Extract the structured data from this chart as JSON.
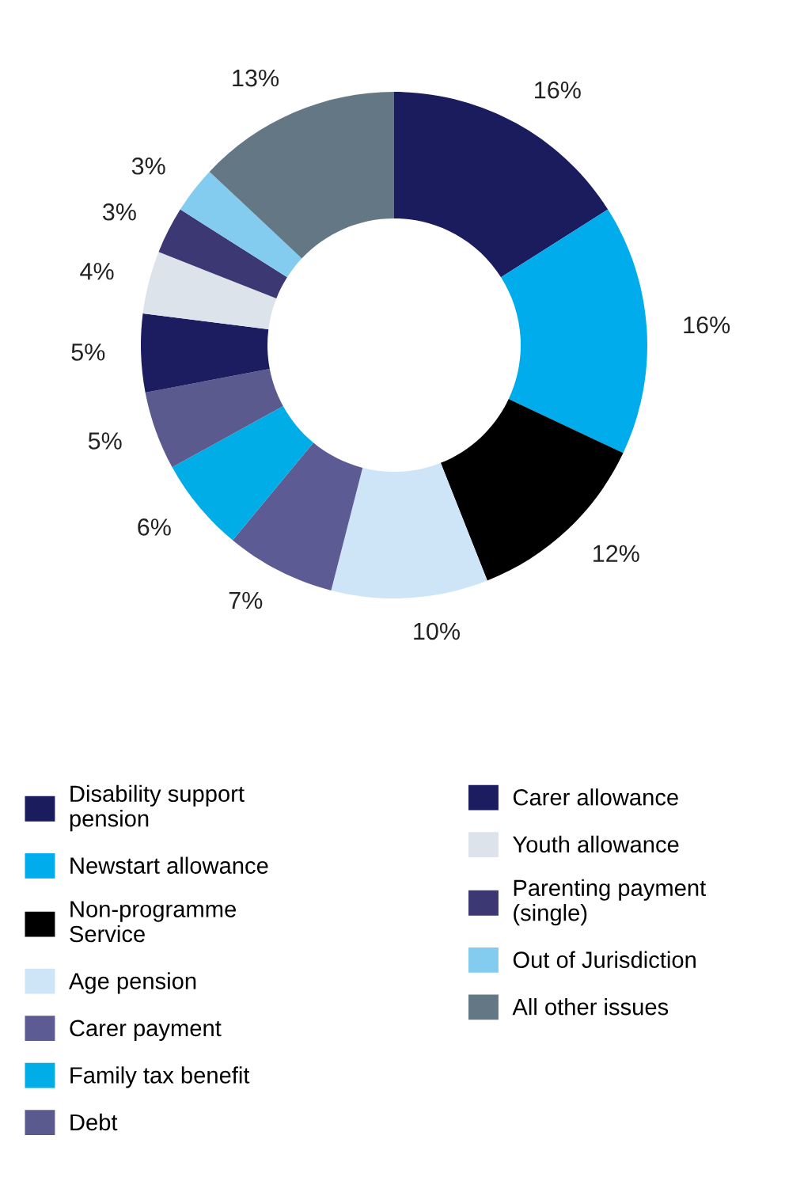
{
  "chart_data": {
    "type": "donut",
    "categories": [
      "Disability support pension",
      "Newstart allowance",
      "Non-programme Service",
      "Age pension",
      "Carer payment",
      "Family tax benefit",
      "Debt",
      "Carer allowance",
      "Youth allowance",
      "Parenting payment (single)",
      "Out of Jurisdiction",
      "All other issues"
    ],
    "values": [
      16,
      16,
      12,
      10,
      7,
      6,
      5,
      5,
      4,
      3,
      3,
      13
    ],
    "value_labels": [
      "16%",
      "16%",
      "12%",
      "10%",
      "7%",
      "6%",
      "5%",
      "5%",
      "4%",
      "3%",
      "3%",
      "13%"
    ],
    "colors": [
      "#1a1c5e",
      "#00acec",
      "#000000",
      "#cde5f7",
      "#5c5b94",
      "#00ade6",
      "#5a5a8e",
      "#1b1d60",
      "#dde3ea",
      "#3b3873",
      "#84ccef",
      "#637884"
    ],
    "legend": "bottom"
  }
}
